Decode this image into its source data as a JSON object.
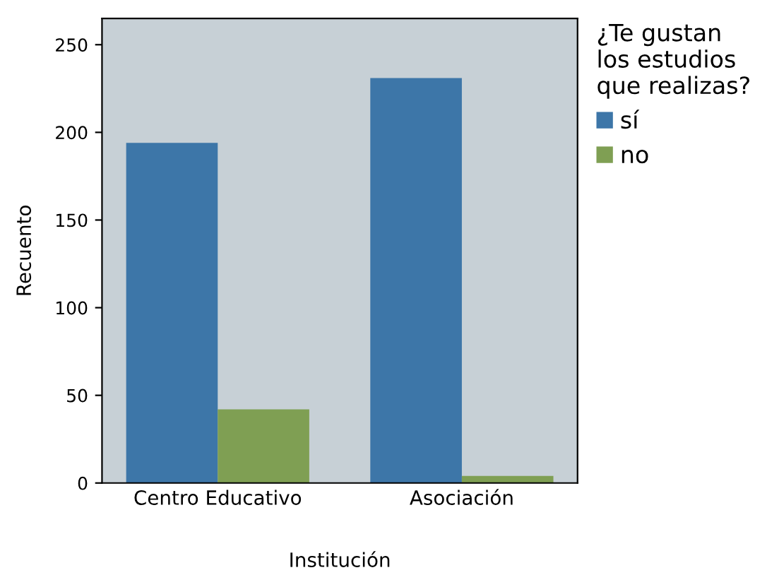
{
  "chart_data": {
    "type": "bar",
    "xlabel": "Institución",
    "ylabel": "Recuento",
    "legend_title": "¿Te gustan\nlos estudios\nque realizas?",
    "categories": [
      "Centro Educativo",
      "Asociación"
    ],
    "series": [
      {
        "name": "sí",
        "color": "#3d76a8",
        "values": [
          194,
          231
        ]
      },
      {
        "name": "no",
        "color": "#7f9f53",
        "values": [
          42,
          4
        ]
      }
    ],
    "ylim": [
      0,
      265
    ],
    "yticks": [
      0,
      50,
      100,
      150,
      200,
      250
    ],
    "grid": false,
    "legend": "top right"
  }
}
